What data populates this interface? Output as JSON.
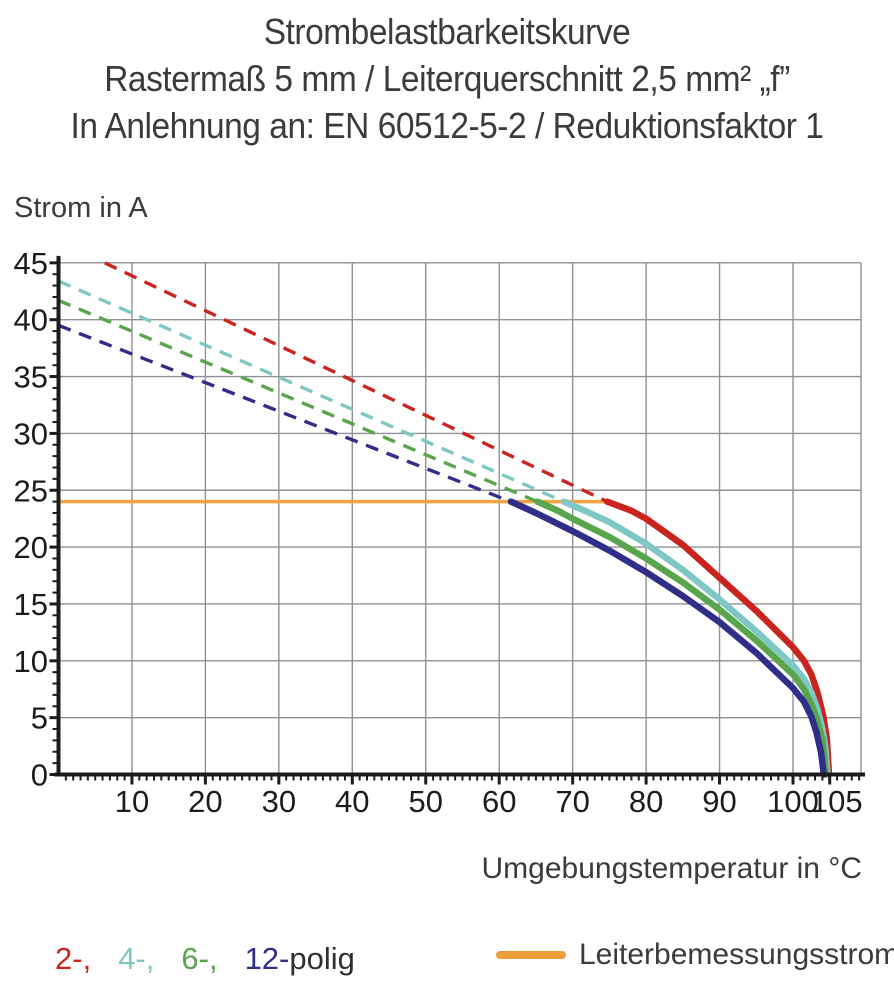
{
  "title": {
    "line1": "Strombelastbarkeitskurve",
    "line2": "Rastermaß 5 mm / Leiterquerschnitt 2,5 mm² „f”",
    "line3": "In Anlehnung an: EN 60512-5-2 / Reduktionsfaktor 1"
  },
  "legend": {
    "position": "bottom",
    "poles_items": [
      {
        "key": "2-polig",
        "label": "2-,",
        "color": "#c9241e"
      },
      {
        "key": "4-polig",
        "label": "4-,",
        "color": "#7ec7c5"
      },
      {
        "key": "6-polig",
        "label": "6-,",
        "color": "#58a54c"
      },
      {
        "key": "12-polig",
        "label": "12-",
        "color": "#312e8a"
      },
      {
        "key": "polig-suffix",
        "label": "polig",
        "color": "#2f2f2f"
      }
    ],
    "reference": {
      "label": "Leiterbemessungsstrom",
      "color": "#ee9c39"
    }
  },
  "chart_data": {
    "type": "line",
    "title": "Strombelastbarkeitskurve",
    "xlabel": "Umgebungstemperatur in °C",
    "ylabel": "Strom in A",
    "xlim": [
      0,
      109.3
    ],
    "ylim": [
      0,
      45
    ],
    "grid": true,
    "x_major_tick_labels": [
      10,
      20,
      30,
      40,
      50,
      60,
      70,
      80,
      90,
      100,
      105
    ],
    "x_gridlines": [
      10,
      20,
      30,
      40,
      50,
      60,
      70,
      80,
      90,
      100
    ],
    "y_tick_labels": [
      0,
      5,
      10,
      15,
      20,
      25,
      30,
      35,
      40,
      45
    ],
    "y_gridlines": [
      5,
      10,
      15,
      20,
      25,
      30,
      35,
      40,
      45
    ],
    "minor_tick_step_x": 1,
    "minor_tick_step_y": 1,
    "style": {
      "grid_color": "#909094",
      "axis_color": "#1b1b1b",
      "tick_label_color": "#1c1c1c",
      "dashed_width": 3.4,
      "solid_width": 6.5,
      "reference_width": 3.4
    },
    "series": [
      {
        "name": "2-polig",
        "color": "#c9241e",
        "dashed_points": [
          [
            6.3,
            45
          ],
          [
            74.7,
            24
          ]
        ],
        "solid_points": [
          [
            74.7,
            24
          ],
          [
            78,
            23.2
          ],
          [
            80,
            22.5
          ],
          [
            85,
            20.2
          ],
          [
            90,
            17.3
          ],
          [
            95,
            14.4
          ],
          [
            100,
            11.2
          ],
          [
            101.5,
            10.0
          ],
          [
            102.5,
            8.8
          ],
          [
            103.3,
            7.3
          ],
          [
            104.1,
            5.2
          ],
          [
            104.6,
            3.2
          ],
          [
            104.9,
            0
          ]
        ]
      },
      {
        "name": "4-polig",
        "color": "#7ec7c5",
        "dashed_points": [
          [
            0,
            43.4
          ],
          [
            68.8,
            24
          ]
        ],
        "solid_points": [
          [
            68.8,
            24
          ],
          [
            72,
            23.1
          ],
          [
            75,
            22.2
          ],
          [
            80,
            20.3
          ],
          [
            85,
            18.0
          ],
          [
            90,
            15.4
          ],
          [
            95,
            12.6
          ],
          [
            100,
            9.6
          ],
          [
            101.5,
            8.4
          ],
          [
            102.5,
            7.2
          ],
          [
            103.3,
            5.8
          ],
          [
            104,
            4.0
          ],
          [
            104.4,
            2.4
          ],
          [
            104.7,
            0
          ]
        ]
      },
      {
        "name": "6-polig",
        "color": "#58a54c",
        "dashed_points": [
          [
            0,
            41.7
          ],
          [
            65.2,
            24
          ]
        ],
        "solid_points": [
          [
            65.2,
            24
          ],
          [
            68,
            23.2
          ],
          [
            70,
            22.5
          ],
          [
            75,
            20.9
          ],
          [
            80,
            19.0
          ],
          [
            85,
            16.9
          ],
          [
            90,
            14.5
          ],
          [
            95,
            11.8
          ],
          [
            100,
            8.8
          ],
          [
            101.5,
            7.5
          ],
          [
            102.5,
            6.2
          ],
          [
            103.3,
            4.8
          ],
          [
            104,
            3.1
          ],
          [
            104.5,
            0
          ]
        ]
      },
      {
        "name": "12-polig",
        "color": "#312e8a",
        "dashed_points": [
          [
            0,
            39.5
          ],
          [
            61.6,
            24
          ]
        ],
        "solid_points": [
          [
            61.6,
            24
          ],
          [
            65,
            23.0
          ],
          [
            70,
            21.4
          ],
          [
            75,
            19.7
          ],
          [
            80,
            17.8
          ],
          [
            85,
            15.7
          ],
          [
            90,
            13.4
          ],
          [
            95,
            10.7
          ],
          [
            100,
            7.6
          ],
          [
            101.5,
            6.4
          ],
          [
            102.5,
            5.1
          ],
          [
            103.2,
            3.7
          ],
          [
            103.8,
            2.0
          ],
          [
            104.2,
            0
          ]
        ]
      }
    ],
    "reference_line": {
      "name": "Leiterbemessungsstrom",
      "color": "#f0a542",
      "value": 24,
      "x_start": 0,
      "x_end": 74.7
    }
  }
}
